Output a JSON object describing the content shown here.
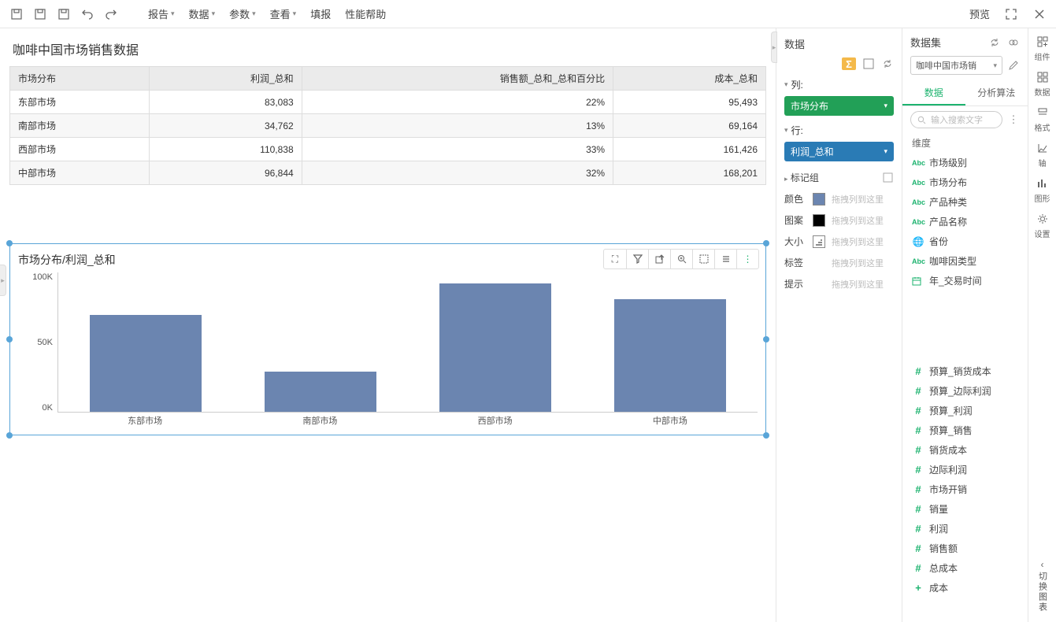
{
  "toolbar": {
    "menus": [
      "报告",
      "数据",
      "参数",
      "查看",
      "填报",
      "性能帮助"
    ],
    "preview": "预览"
  },
  "report": {
    "title": "咖啡中国市场销售数据",
    "columns": [
      "市场分布",
      "利润_总和",
      "销售额_总和_总和百分比",
      "成本_总和"
    ],
    "rows": [
      [
        "东部市场",
        "83,083",
        "22%",
        "95,493"
      ],
      [
        "南部市场",
        "34,762",
        "13%",
        "69,164"
      ],
      [
        "西部市场",
        "110,838",
        "33%",
        "161,426"
      ],
      [
        "中部市场",
        "96,844",
        "32%",
        "168,201"
      ]
    ]
  },
  "chart": {
    "title": "市场分布/利润_总和",
    "type": "bar",
    "categories": [
      "东部市场",
      "南部市场",
      "西部市场",
      "中部市场"
    ],
    "values": [
      83083,
      34762,
      110838,
      96844
    ],
    "bar_color": "#6b85b0",
    "yticks": [
      "100K",
      "50K",
      "0K"
    ],
    "ymax": 120000,
    "background": "#ffffff"
  },
  "config": {
    "header": "数据",
    "col_label": "列:",
    "col_pill": "市场分布",
    "row_label": "行:",
    "row_pill": "利润_总和",
    "marker_group": "标记组",
    "drop_placeholder": "拖拽列到这里",
    "shelves": {
      "color": "颜色",
      "pattern": "图案",
      "size": "大小",
      "label": "标签",
      "tooltip": "提示"
    }
  },
  "dataset": {
    "title": "数据集",
    "selected": "咖啡中国市场销",
    "tabs": [
      "数据",
      "分析算法"
    ],
    "search_placeholder": "输入搜索文字",
    "dim_label": "维度",
    "dims": [
      {
        "icon": "abc",
        "name": "市场级别"
      },
      {
        "icon": "abc",
        "name": "市场分布"
      },
      {
        "icon": "abc",
        "name": "产品种类"
      },
      {
        "icon": "abc",
        "name": "产品名称"
      },
      {
        "icon": "globe",
        "name": "省份"
      },
      {
        "icon": "abc",
        "name": "咖啡因类型"
      },
      {
        "icon": "cal",
        "name": "年_交易时间"
      }
    ],
    "measures": [
      {
        "icon": "hash",
        "name": "预算_销货成本"
      },
      {
        "icon": "hash",
        "name": "预算_边际利润"
      },
      {
        "icon": "hash",
        "name": "预算_利润"
      },
      {
        "icon": "hash",
        "name": "预算_销售"
      },
      {
        "icon": "hash",
        "name": "销货成本"
      },
      {
        "icon": "hash",
        "name": "边际利润"
      },
      {
        "icon": "hash",
        "name": "市场开销"
      },
      {
        "icon": "hash",
        "name": "销量"
      },
      {
        "icon": "hash",
        "name": "利润"
      },
      {
        "icon": "hash",
        "name": "销售额"
      },
      {
        "icon": "hash",
        "name": "总成本"
      },
      {
        "icon": "plus",
        "name": "成本"
      }
    ]
  },
  "rail": {
    "items": [
      "组件",
      "数据",
      "格式",
      "轴",
      "图形",
      "设置"
    ],
    "bottom": "切换图表"
  }
}
